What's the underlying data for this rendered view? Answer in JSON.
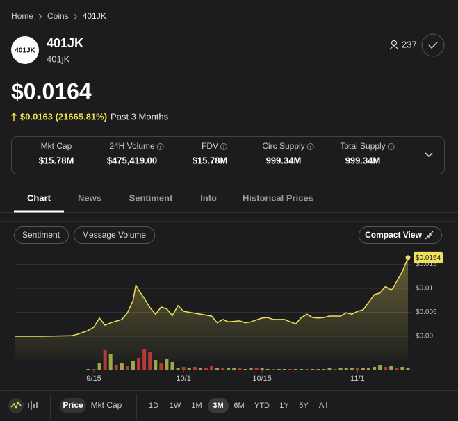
{
  "breadcrumb": [
    "Home",
    "Coins",
    "401JK"
  ],
  "coin": {
    "logo": "401JK",
    "name": "401JK",
    "symbol": "401jK",
    "watchers": 237
  },
  "price": "$0.0164",
  "change": {
    "value": "$0.0163 (21665.81%)",
    "period": "Past 3 Months"
  },
  "stats": [
    {
      "label": "Mkt Cap",
      "value": "$15.78M"
    },
    {
      "label": "24H Volume",
      "value": "$475,419.00"
    },
    {
      "label": "FDV",
      "value": "$15.78M"
    },
    {
      "label": "Circ Supply",
      "value": "999.34M"
    },
    {
      "label": "Total Supply",
      "value": "999.34M"
    }
  ],
  "tabs": [
    "Chart",
    "News",
    "Sentiment",
    "Info",
    "Historical Prices"
  ],
  "chart_toggles": [
    "Sentiment",
    "Message Volume"
  ],
  "compact_view": "Compact View",
  "chart": {
    "type": "line",
    "color": "#efe25a",
    "x": [
      0,
      5,
      10,
      11,
      13,
      14,
      15,
      16,
      17,
      19,
      20,
      21,
      21.5,
      22,
      23,
      24,
      25,
      26,
      27,
      28,
      29,
      30,
      31,
      33,
      35,
      36,
      37,
      38,
      40,
      41,
      42,
      44,
      45,
      46,
      48,
      49,
      50,
      51,
      52,
      53,
      54,
      55,
      56,
      58,
      59,
      60,
      61,
      62,
      63,
      64,
      65,
      66,
      67,
      67.5,
      68,
      69,
      70
    ],
    "values": [
      0,
      0,
      0.0001,
      0.0004,
      0.0012,
      0.0019,
      0.0038,
      0.0023,
      0.0028,
      0.0035,
      0.0049,
      0.0075,
      0.0107,
      0.0096,
      0.0079,
      0.006,
      0.0046,
      0.0061,
      0.0057,
      0.0043,
      0.0064,
      0.0052,
      0.005,
      0.0046,
      0.0042,
      0.0028,
      0.0035,
      0.003,
      0.0032,
      0.0028,
      0.003,
      0.0038,
      0.0039,
      0.0035,
      0.0035,
      0.003,
      0.0026,
      0.0039,
      0.0046,
      0.0039,
      0.0038,
      0.0039,
      0.0042,
      0.0042,
      0.0049,
      0.0046,
      0.0052,
      0.0055,
      0.0071,
      0.0087,
      0.009,
      0.0104,
      0.0096,
      0.0104,
      0.0115,
      0.0135,
      0.0164
    ],
    "last_label": "$0.0164",
    "xlim": [
      0,
      70
    ],
    "ylim": [
      -0.0071,
      0.01725
    ],
    "xticks": [
      {
        "value": 14,
        "label": "9/15"
      },
      {
        "value": 30,
        "label": "10/1"
      },
      {
        "value": 44,
        "label": "10/15"
      },
      {
        "value": 61,
        "label": "11/1"
      }
    ],
    "yticks": [
      {
        "value": 0,
        "label": "$0.00"
      },
      {
        "value": 0.005,
        "label": "$0.005"
      },
      {
        "value": 0.01,
        "label": "$0.01"
      },
      {
        "value": 0.015,
        "label": "$0.015"
      }
    ],
    "grid": true,
    "volume": {
      "x": [
        13,
        14,
        15,
        16,
        17,
        18,
        19,
        20,
        21,
        22,
        23,
        24,
        25,
        26,
        27,
        28,
        29,
        30,
        31,
        32,
        33,
        34,
        35,
        36,
        37,
        38,
        39,
        40,
        41,
        42,
        43,
        44,
        45,
        46,
        47,
        48,
        49,
        50,
        51,
        52,
        53,
        54,
        55,
        56,
        57,
        58,
        59,
        60,
        61,
        62,
        63,
        64,
        65,
        66,
        67,
        68,
        69,
        70
      ],
      "values": [
        2,
        2,
        10,
        29,
        23,
        8,
        10,
        6,
        13,
        17,
        31,
        27,
        15,
        11,
        16,
        12,
        4,
        5,
        4,
        5,
        4,
        3,
        6,
        4,
        3,
        4,
        3,
        3,
        2,
        3,
        4,
        3,
        2,
        2,
        2,
        2,
        2,
        2,
        2,
        2,
        2,
        2,
        2,
        3,
        2,
        3,
        3,
        4,
        3,
        3,
        4,
        5,
        7,
        5,
        6,
        3,
        5,
        4
      ],
      "colors": [
        "#9aa84a",
        "#b33a3a",
        "#9aa84a",
        "#b33a3a",
        "#9aa84a",
        "#b33a3a",
        "#9aa84a",
        "#b33a3a",
        "#9aa84a",
        "#b33a3a",
        "#b33a3a",
        "#b33a3a",
        "#9aa84a",
        "#b33a3a",
        "#9aa84a",
        "#9aa84a",
        "#9aa84a",
        "#b33a3a",
        "#9aa84a",
        "#b33a3a",
        "#9aa84a",
        "#b33a3a",
        "#b33a3a",
        "#9aa84a",
        "#b33a3a",
        "#9aa84a",
        "#9aa84a",
        "#b33a3a",
        "#9aa84a",
        "#9aa84a",
        "#b33a3a",
        "#9aa84a",
        "#9aa84a",
        "#b33a3a",
        "#9aa84a",
        "#9aa84a",
        "#b33a3a",
        "#9aa84a",
        "#9aa84a",
        "#b33a3a",
        "#9aa84a",
        "#9aa84a",
        "#9aa84a",
        "#9aa84a",
        "#b33a3a",
        "#9aa84a",
        "#9aa84a",
        "#9aa84a",
        "#b33a3a",
        "#9aa84a",
        "#9aa84a",
        "#9aa84a",
        "#9aa84a",
        "#b33a3a",
        "#9aa84a",
        "#b33a3a",
        "#9aa84a",
        "#9aa84a"
      ]
    }
  },
  "chart_modes": [
    "Price",
    "Mkt Cap"
  ],
  "ranges": [
    "1D",
    "1W",
    "1M",
    "3M",
    "6M",
    "YTD",
    "1Y",
    "5Y",
    "All"
  ],
  "selected_range": "3M"
}
